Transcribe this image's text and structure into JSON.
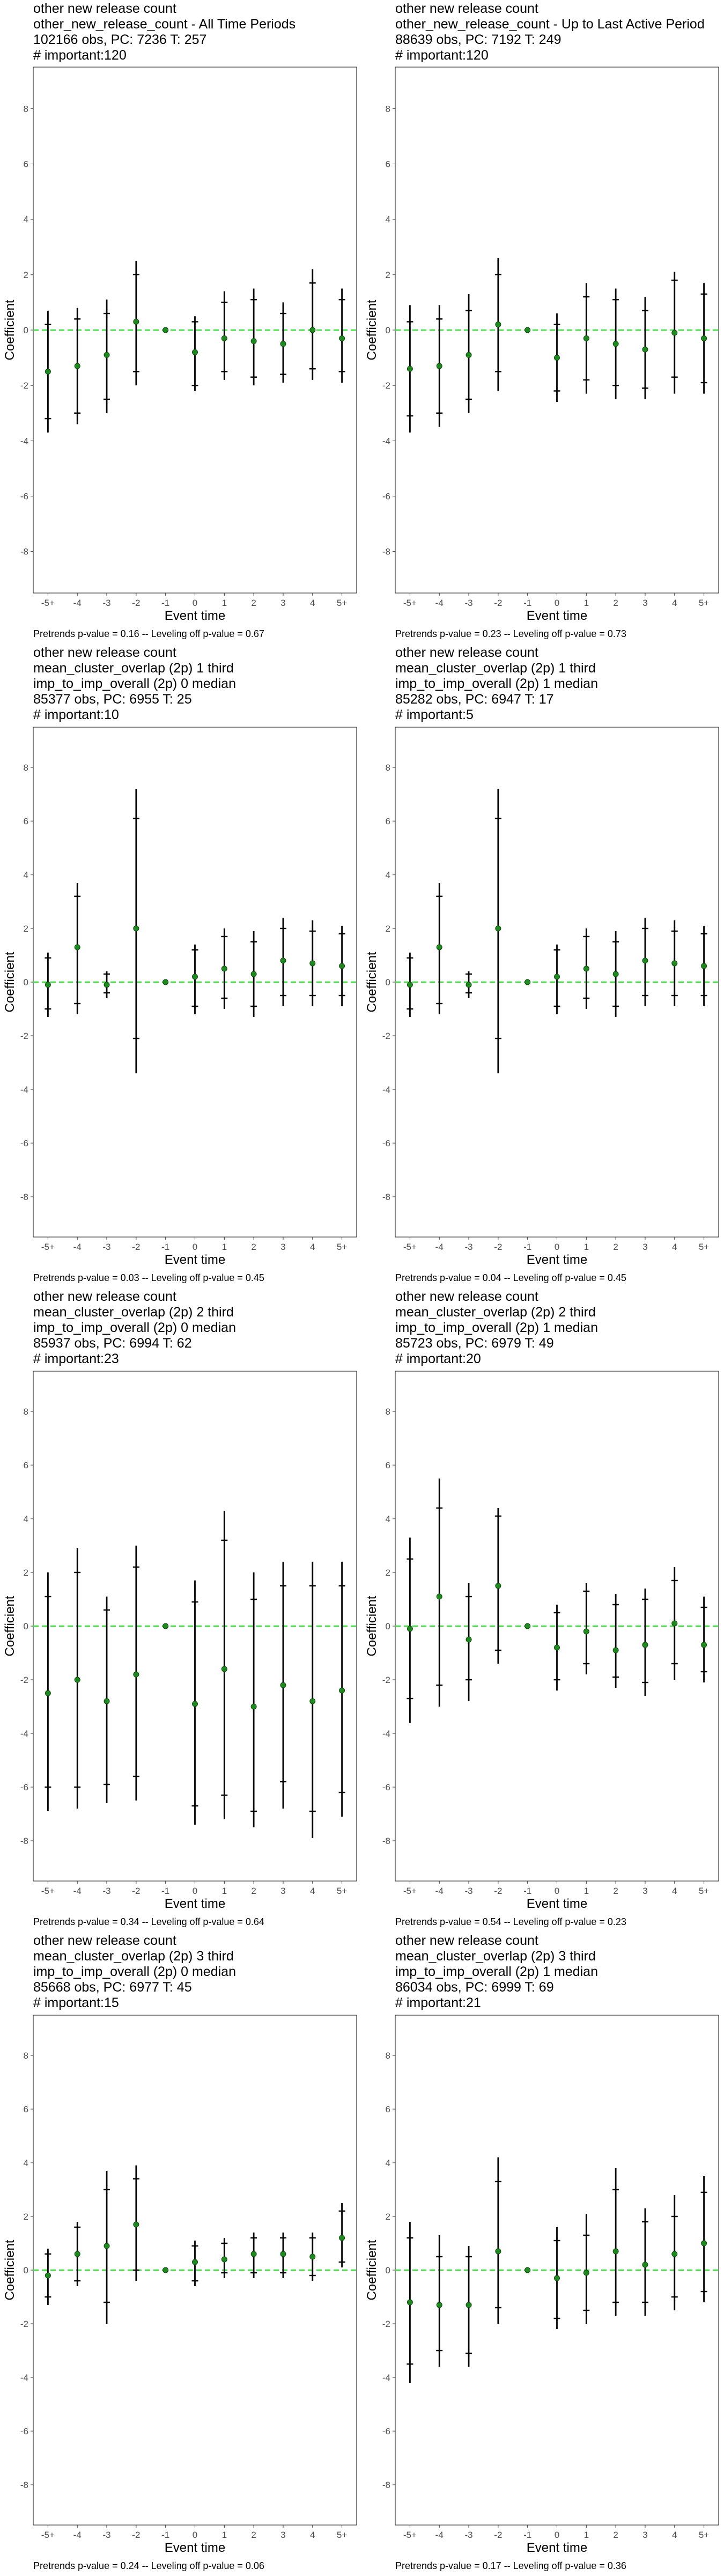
{
  "shared_axes": {
    "xlabel": "Event time",
    "ylabel": "Coefficient",
    "x_ticks": [
      "-5+",
      "-4",
      "-3",
      "-2",
      "-1",
      "0",
      "1",
      "2",
      "3",
      "4",
      "5+"
    ],
    "y_ticks": [
      "-8",
      "-6",
      "-4",
      "-2",
      "0",
      "2",
      "4",
      "6",
      "8"
    ]
  },
  "colors": {
    "point": "#1f8a1f",
    "zero_line": "#33dd33",
    "error_bar": "#000000",
    "border": "#333333"
  },
  "chart_data": [
    {
      "type": "scatter",
      "title_lines": [
        "other new release count",
        "other_new_release_count - All Time Periods",
        "102166 obs, PC: 7236 T: 257",
        "# important:120"
      ],
      "footnote": "Pretrends p-value = 0.16 -- Leveling off p-value = 0.67",
      "xlabel": "Event time",
      "ylabel": "Coefficient",
      "ylim": [
        -9.5,
        9.5
      ],
      "x": [
        "-5+",
        "-4",
        "-3",
        "-2",
        "-1",
        "0",
        "1",
        "2",
        "3",
        "4",
        "5+"
      ],
      "y": [
        -1.5,
        -1.3,
        -0.9,
        0.3,
        0.0,
        -0.8,
        -0.3,
        -0.4,
        -0.5,
        0.0,
        -0.3
      ],
      "ci_low": [
        -3.7,
        -3.4,
        -3.0,
        -2.0,
        0.0,
        -2.2,
        -1.8,
        -2.0,
        -1.9,
        -1.8,
        -1.9
      ],
      "ci_high": [
        0.7,
        0.8,
        1.1,
        2.5,
        0.0,
        0.5,
        1.4,
        1.5,
        1.0,
        2.2,
        1.5
      ],
      "ci90_low": [
        -3.2,
        -3.0,
        -2.5,
        -1.5,
        0.0,
        -2.0,
        -1.5,
        -1.7,
        -1.6,
        -1.4,
        -1.5
      ],
      "ci90_high": [
        0.2,
        0.4,
        0.6,
        2.0,
        0.0,
        0.3,
        1.0,
        1.1,
        0.6,
        1.7,
        1.1
      ]
    },
    {
      "type": "scatter",
      "title_lines": [
        "other new release count",
        "other_new_release_count - Up to Last Active Period",
        "88639 obs, PC: 7192 T: 249",
        "# important:120"
      ],
      "footnote": "Pretrends p-value = 0.23 -- Leveling off p-value = 0.73",
      "xlabel": "Event time",
      "ylabel": "Coefficient",
      "ylim": [
        -9.5,
        9.5
      ],
      "x": [
        "-5+",
        "-4",
        "-3",
        "-2",
        "-1",
        "0",
        "1",
        "2",
        "3",
        "4",
        "5+"
      ],
      "y": [
        -1.4,
        -1.3,
        -0.9,
        0.2,
        0.0,
        -1.0,
        -0.3,
        -0.5,
        -0.7,
        -0.1,
        -0.3
      ],
      "ci_low": [
        -3.7,
        -3.5,
        -3.0,
        -2.2,
        0.0,
        -2.6,
        -2.3,
        -2.5,
        -2.5,
        -2.3,
        -2.3
      ],
      "ci_high": [
        0.9,
        0.9,
        1.3,
        2.6,
        0.0,
        0.6,
        1.7,
        1.5,
        1.2,
        2.1,
        1.7
      ],
      "ci90_low": [
        -3.1,
        -3.0,
        -2.5,
        -1.5,
        0.0,
        -2.2,
        -1.8,
        -2.0,
        -2.1,
        -1.7,
        -1.9
      ],
      "ci90_high": [
        0.3,
        0.4,
        0.7,
        2.0,
        0.0,
        0.2,
        1.2,
        1.1,
        0.7,
        1.8,
        1.3
      ]
    },
    {
      "type": "scatter",
      "title_lines": [
        "other new release count",
        "mean_cluster_overlap (2p) 1 third",
        "imp_to_imp_overall (2p) 0 median",
        "85377 obs, PC: 6955 T: 25",
        "# important:10"
      ],
      "footnote": "Pretrends p-value = 0.03 -- Leveling off p-value = 0.45",
      "xlabel": "Event time",
      "ylabel": "Coefficient",
      "ylim": [
        -9.5,
        9.5
      ],
      "x": [
        "-5+",
        "-4",
        "-3",
        "-2",
        "-1",
        "0",
        "1",
        "2",
        "3",
        "4",
        "5+"
      ],
      "y": [
        -0.1,
        1.3,
        -0.1,
        2.0,
        0.0,
        0.2,
        0.5,
        0.3,
        0.8,
        0.7,
        0.6
      ],
      "ci_low": [
        -1.3,
        -1.2,
        -0.6,
        -3.4,
        0.0,
        -1.2,
        -1.0,
        -1.3,
        -0.9,
        -0.9,
        -0.9
      ],
      "ci_high": [
        1.1,
        3.7,
        0.4,
        7.2,
        0.0,
        1.4,
        2.0,
        1.9,
        2.4,
        2.3,
        2.1
      ],
      "ci90_low": [
        -1.0,
        -0.8,
        -0.4,
        -2.1,
        0.0,
        -0.9,
        -0.6,
        -0.9,
        -0.5,
        -0.5,
        -0.5
      ],
      "ci90_high": [
        0.9,
        3.2,
        0.3,
        6.1,
        0.0,
        1.2,
        1.7,
        1.5,
        2.0,
        1.9,
        1.8
      ]
    },
    {
      "type": "scatter",
      "title_lines": [
        "other new release count",
        "mean_cluster_overlap (2p) 1 third",
        "imp_to_imp_overall (2p) 1 median",
        "85282 obs, PC: 6947 T: 17",
        "# important:5"
      ],
      "footnote": "Pretrends p-value = 0.04 -- Leveling off p-value = 0.45",
      "xlabel": "Event time",
      "ylabel": "Coefficient",
      "ylim": [
        -9.5,
        9.5
      ],
      "x": [
        "-5+",
        "-4",
        "-3",
        "-2",
        "-1",
        "0",
        "1",
        "2",
        "3",
        "4",
        "5+"
      ],
      "y": [
        -0.1,
        1.3,
        -0.1,
        2.0,
        0.0,
        0.2,
        0.5,
        0.3,
        0.8,
        0.7,
        0.6
      ],
      "ci_low": [
        -1.3,
        -1.2,
        -0.6,
        -3.4,
        0.0,
        -1.2,
        -1.0,
        -1.3,
        -0.9,
        -0.9,
        -0.9
      ],
      "ci_high": [
        1.1,
        3.7,
        0.4,
        7.2,
        0.0,
        1.4,
        2.0,
        1.9,
        2.4,
        2.3,
        2.1
      ],
      "ci90_low": [
        -1.0,
        -0.8,
        -0.4,
        -2.1,
        0.0,
        -0.9,
        -0.6,
        -0.9,
        -0.5,
        -0.5,
        -0.5
      ],
      "ci90_high": [
        0.9,
        3.2,
        0.3,
        6.1,
        0.0,
        1.2,
        1.7,
        1.5,
        2.0,
        1.9,
        1.8
      ]
    },
    {
      "type": "scatter",
      "title_lines": [
        "other new release count",
        "mean_cluster_overlap (2p) 2 third",
        "imp_to_imp_overall (2p) 0 median",
        "85937 obs, PC: 6994 T: 62",
        "# important:23"
      ],
      "footnote": "Pretrends p-value = 0.34 -- Leveling off p-value = 0.64",
      "xlabel": "Event time",
      "ylabel": "Coefficient",
      "ylim": [
        -9.5,
        9.5
      ],
      "x": [
        "-5+",
        "-4",
        "-3",
        "-2",
        "-1",
        "0",
        "1",
        "2",
        "3",
        "4",
        "5+"
      ],
      "y": [
        -2.5,
        -2.0,
        -2.8,
        -1.8,
        0.0,
        -2.9,
        -1.6,
        -3.0,
        -2.2,
        -2.8,
        -2.4
      ],
      "ci_low": [
        -6.9,
        -6.8,
        -6.6,
        -6.5,
        0.0,
        -7.4,
        -7.2,
        -7.5,
        -6.8,
        -7.9,
        -7.1
      ],
      "ci_high": [
        2.0,
        2.9,
        1.1,
        3.0,
        0.0,
        1.7,
        4.3,
        2.0,
        2.4,
        2.4,
        2.4
      ],
      "ci90_low": [
        -6.0,
        -6.0,
        -5.9,
        -5.6,
        0.0,
        -6.7,
        -6.3,
        -6.9,
        -5.8,
        -6.9,
        -6.2
      ],
      "ci90_high": [
        1.1,
        2.0,
        0.6,
        2.2,
        0.0,
        0.9,
        3.2,
        1.0,
        1.5,
        1.5,
        1.5
      ]
    },
    {
      "type": "scatter",
      "title_lines": [
        "other new release count",
        "mean_cluster_overlap (2p) 2 third",
        "imp_to_imp_overall (2p) 1 median",
        "85723 obs, PC: 6979 T: 49",
        "# important:20"
      ],
      "footnote": "Pretrends p-value = 0.54 -- Leveling off p-value = 0.23",
      "xlabel": "Event time",
      "ylabel": "Coefficient",
      "ylim": [
        -9.5,
        9.5
      ],
      "x": [
        "-5+",
        "-4",
        "-3",
        "-2",
        "-1",
        "0",
        "1",
        "2",
        "3",
        "4",
        "5+"
      ],
      "y": [
        -0.1,
        1.1,
        -0.5,
        1.5,
        0.0,
        -0.8,
        -0.2,
        -0.9,
        -0.7,
        0.1,
        -0.7
      ],
      "ci_low": [
        -3.6,
        -3.0,
        -2.8,
        -1.4,
        0.0,
        -2.4,
        -1.8,
        -2.3,
        -2.6,
        -2.0,
        -2.1
      ],
      "ci_high": [
        3.3,
        5.5,
        1.6,
        4.4,
        0.0,
        0.8,
        1.6,
        1.2,
        1.4,
        2.2,
        1.1
      ],
      "ci90_low": [
        -2.7,
        -2.2,
        -2.0,
        -0.9,
        0.0,
        -2.0,
        -1.4,
        -1.9,
        -2.1,
        -1.4,
        -1.7
      ],
      "ci90_high": [
        2.5,
        4.4,
        1.1,
        4.1,
        0.0,
        0.5,
        1.3,
        0.8,
        1.0,
        1.7,
        0.7
      ]
    },
    {
      "type": "scatter",
      "title_lines": [
        "other new release count",
        "mean_cluster_overlap (2p) 3 third",
        "imp_to_imp_overall (2p) 0 median",
        "85668 obs, PC: 6977 T: 45",
        "# important:15"
      ],
      "footnote": "Pretrends p-value = 0.24 -- Leveling off p-value = 0.06",
      "xlabel": "Event time",
      "ylabel": "Coefficient",
      "ylim": [
        -9.5,
        9.5
      ],
      "x": [
        "-5+",
        "-4",
        "-3",
        "-2",
        "-1",
        "0",
        "1",
        "2",
        "3",
        "4",
        "5+"
      ],
      "y": [
        -0.2,
        0.6,
        0.9,
        1.7,
        0.0,
        0.3,
        0.4,
        0.6,
        0.6,
        0.5,
        1.2
      ],
      "ci_low": [
        -1.3,
        -0.6,
        -2.0,
        -0.4,
        0.0,
        -0.6,
        -0.3,
        -0.3,
        -0.3,
        -0.4,
        0.1
      ],
      "ci_high": [
        0.8,
        1.8,
        3.7,
        3.9,
        0.0,
        1.1,
        1.2,
        1.4,
        1.4,
        1.4,
        2.5
      ],
      "ci90_low": [
        -1.0,
        -0.4,
        -1.2,
        0.0,
        0.0,
        -0.4,
        -0.1,
        -0.1,
        -0.1,
        -0.2,
        0.3
      ],
      "ci90_high": [
        0.6,
        1.6,
        3.0,
        3.4,
        0.0,
        0.9,
        1.0,
        1.2,
        1.2,
        1.2,
        2.2
      ]
    },
    {
      "type": "scatter",
      "title_lines": [
        "other new release count",
        "mean_cluster_overlap (2p) 3 third",
        "imp_to_imp_overall (2p) 1 median",
        "86034 obs, PC: 6999 T: 69",
        "# important:21"
      ],
      "footnote": "Pretrends p-value = 0.17 -- Leveling off p-value = 0.36",
      "xlabel": "Event time",
      "ylabel": "Coefficient",
      "ylim": [
        -9.5,
        9.5
      ],
      "x": [
        "-5+",
        "-4",
        "-3",
        "-2",
        "-1",
        "0",
        "1",
        "2",
        "3",
        "4",
        "5+"
      ],
      "y": [
        -1.2,
        -1.3,
        -1.3,
        0.7,
        0.0,
        -0.3,
        -0.1,
        0.7,
        0.2,
        0.6,
        1.0
      ],
      "ci_low": [
        -4.2,
        -3.6,
        -3.6,
        -2.0,
        0.0,
        -2.2,
        -2.0,
        -1.7,
        -1.7,
        -1.5,
        -1.2
      ],
      "ci_high": [
        1.8,
        1.3,
        0.9,
        4.2,
        0.0,
        1.6,
        2.1,
        3.8,
        2.3,
        2.8,
        3.5
      ],
      "ci90_low": [
        -3.5,
        -3.0,
        -3.1,
        -1.4,
        0.0,
        -1.8,
        -1.5,
        -1.2,
        -1.2,
        -1.0,
        -0.8
      ],
      "ci90_high": [
        1.2,
        0.5,
        0.5,
        3.3,
        0.0,
        1.1,
        1.3,
        3.0,
        1.8,
        2.0,
        2.9
      ]
    }
  ]
}
